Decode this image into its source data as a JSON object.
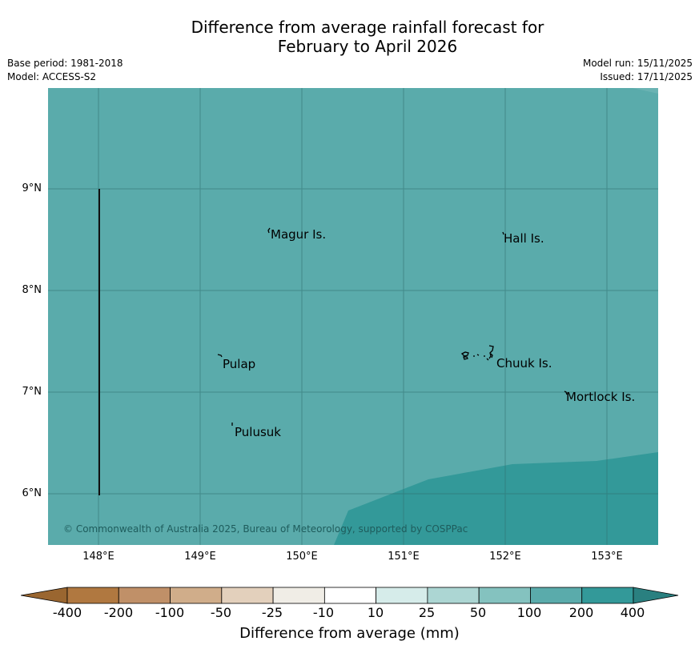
{
  "title_line1": "Difference from average rainfall forecast for",
  "title_line2": "February to April 2026",
  "base_period": "Base period: 1981-2018",
  "model": "Model: ACCESS-S2",
  "model_run": "Model run: 15/11/2025",
  "issued": "Issued: 17/11/2025",
  "copyright": "© Commonwealth of Australia 2025, Bureau of Meteorology, supported by COSPPac",
  "lat_labels": [
    "9°N",
    "8°N",
    "7°N",
    "6°N"
  ],
  "lon_labels": [
    "148°E",
    "149°E",
    "150°E",
    "151°E",
    "152°E",
    "153°E"
  ],
  "places": [
    "Magur Is.",
    "Hall Is.",
    "Pulap",
    "Chuuk Is.",
    "Mortlock Is.",
    "Pulusuk"
  ],
  "colorbar": {
    "ticks": [
      "-400",
      "-200",
      "-100",
      "-50",
      "-25",
      "-10",
      "10",
      "25",
      "50",
      "100",
      "200",
      "400"
    ],
    "colors": [
      "#b07840",
      "#c09068",
      "#d0ad8a",
      "#e3d0bc",
      "#f0ede6",
      "#ffffff",
      "#d6ecea",
      "#acd6d3",
      "#84c2bf",
      "#5aabab",
      "#339999"
    ],
    "under_color": "#9a6630",
    "over_color": "#2a8080",
    "label": "Difference from average (mm)"
  },
  "map_colors": {
    "category_200": "#5aabab",
    "category_400": "#339999"
  }
}
